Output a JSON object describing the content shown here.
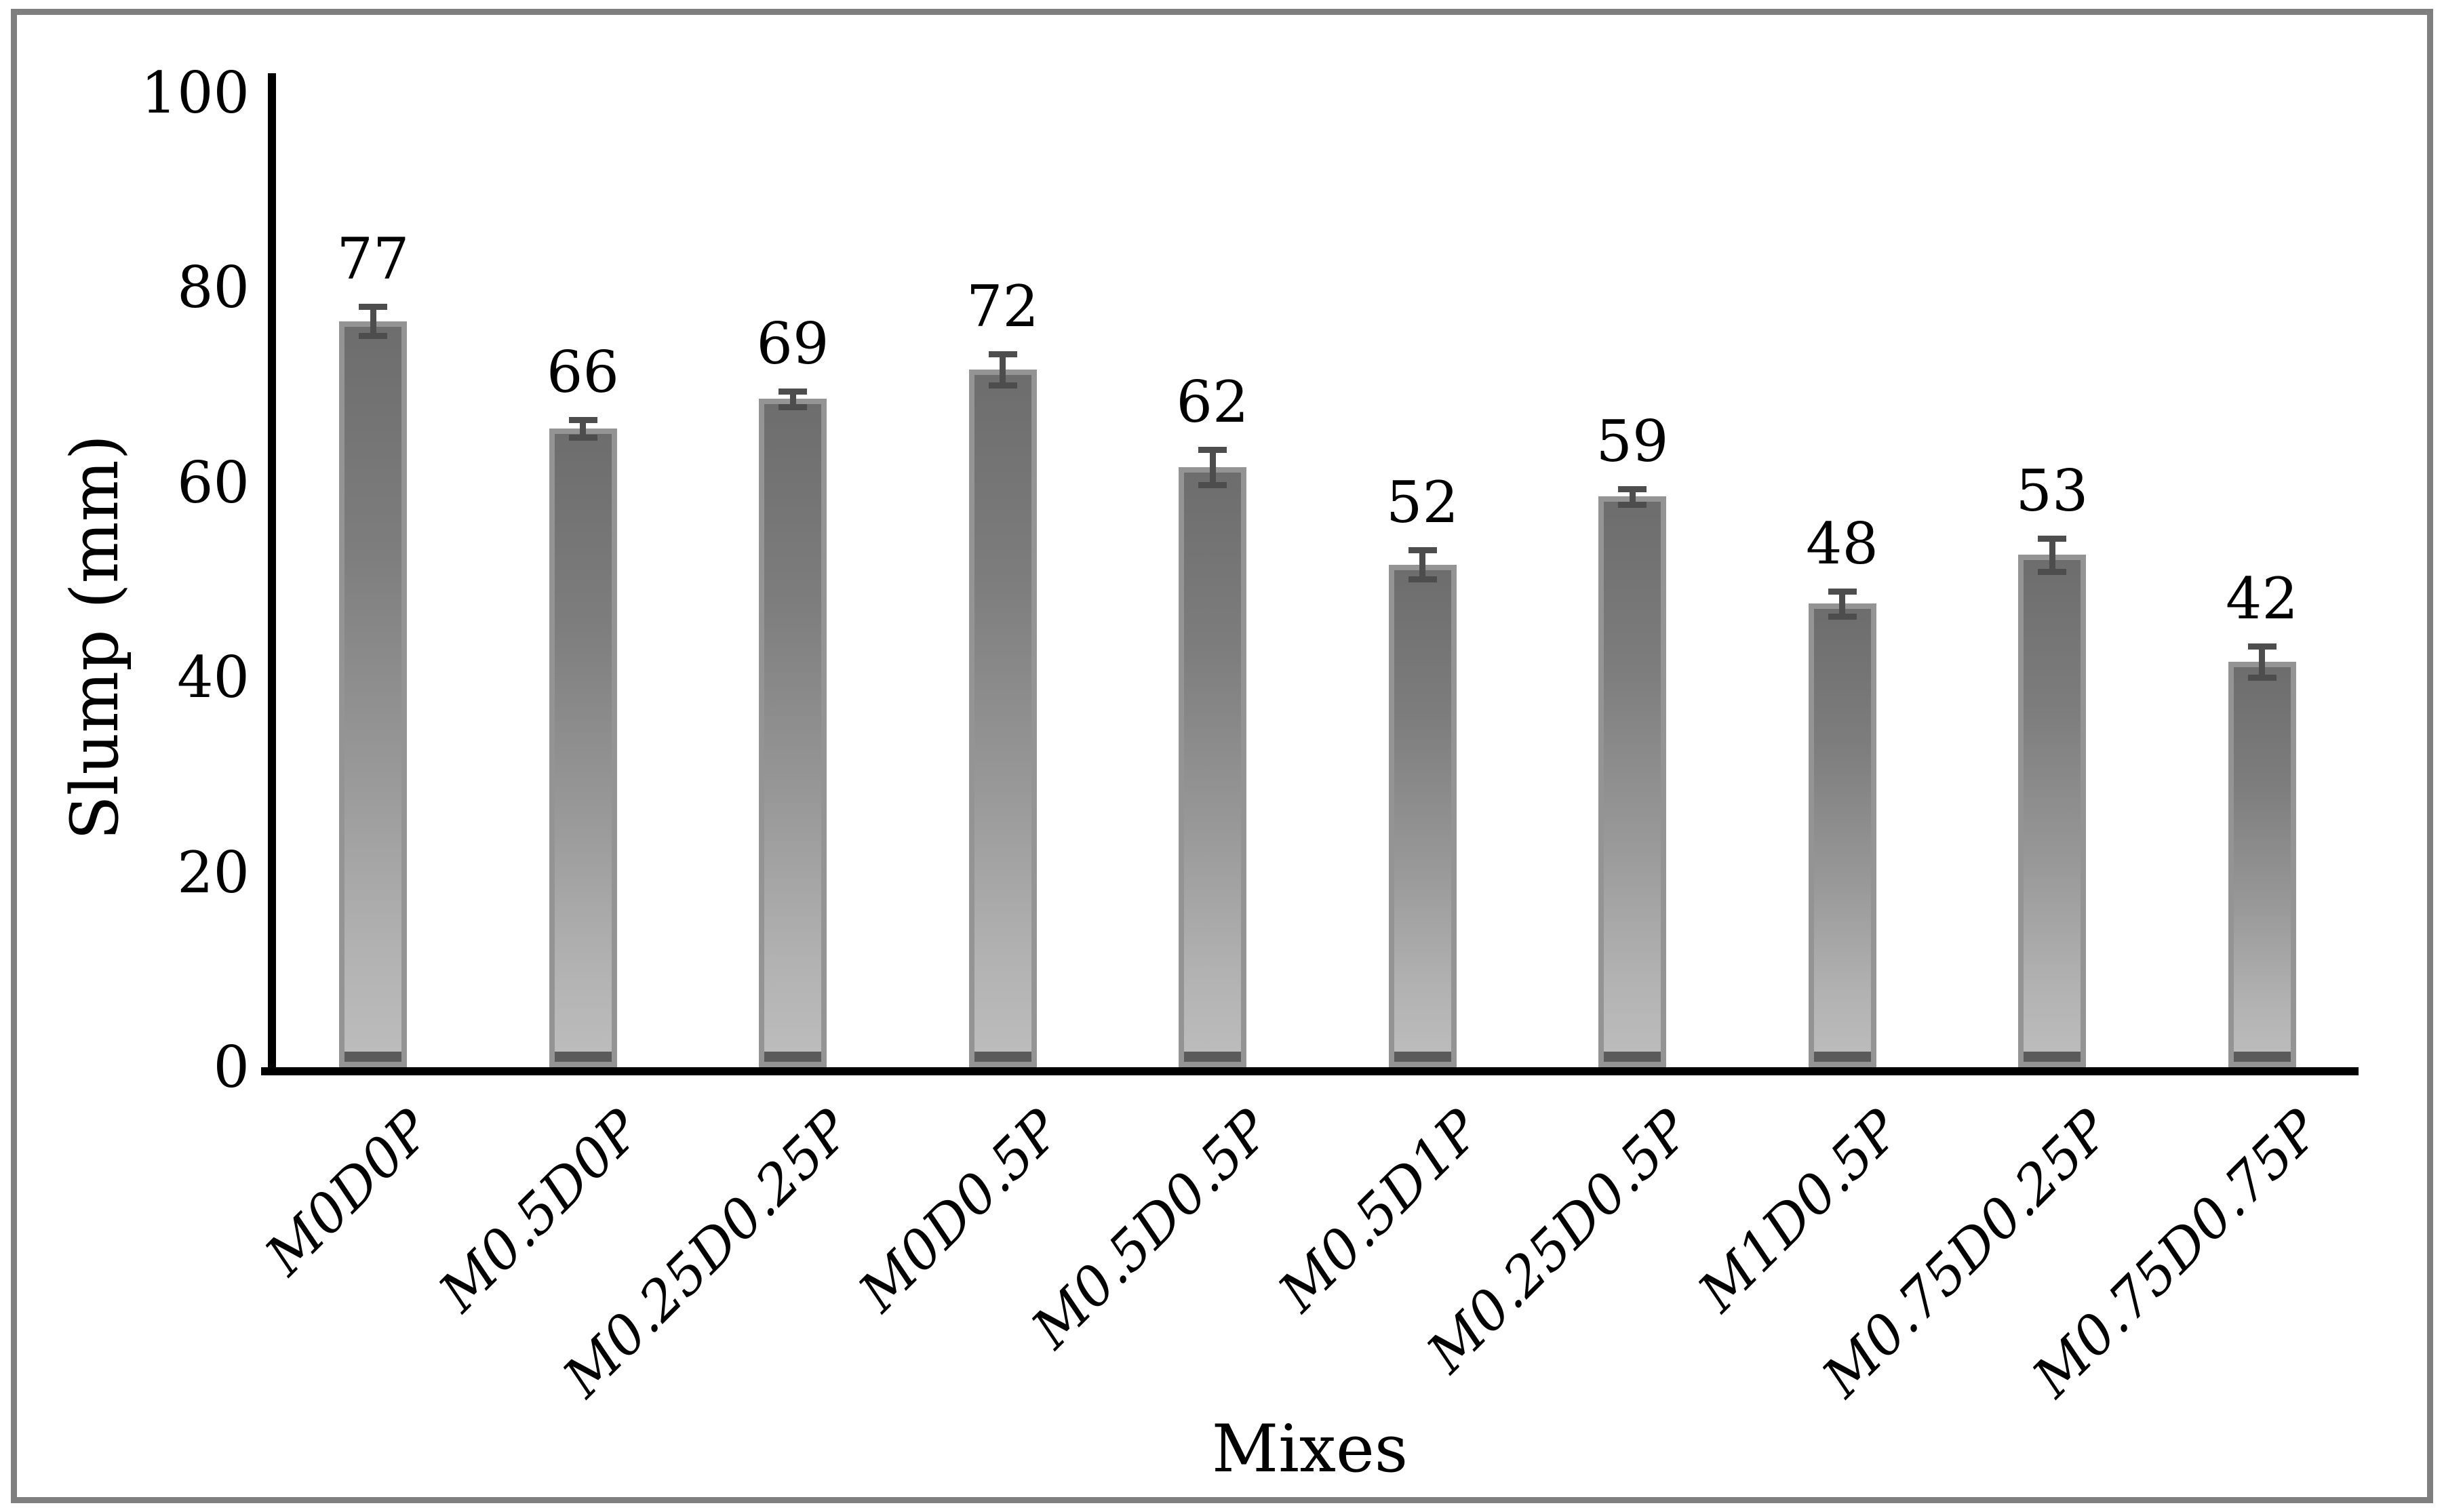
{
  "figure": {
    "background": "#ffffff",
    "frame_color": "#7f7f7f"
  },
  "chart_data": {
    "type": "bar",
    "title": "",
    "xlabel": "Mixes",
    "ylabel": "Slump (mm)",
    "categories": [
      "M0D0P",
      "M0.5D0P",
      "M0.25D0.25P",
      "M0D0.5P",
      "M0.5D0.5P",
      "M0.5D1P",
      "M0.25D0.5P",
      "M1D0.5P",
      "M0.75D0.25P",
      "M0.75D0.75P"
    ],
    "values": [
      77,
      66,
      69,
      72,
      62,
      52,
      59,
      48,
      53,
      42
    ],
    "data_labels": [
      "77",
      "66",
      "69",
      "72",
      "62",
      "52",
      "59",
      "48",
      "53",
      "42"
    ],
    "error_bars": [
      1.5,
      0.9,
      0.8,
      1.6,
      1.8,
      1.5,
      0.8,
      1.3,
      1.7,
      1.6
    ],
    "yticks": [
      "0",
      "20",
      "40",
      "60",
      "80",
      "100"
    ],
    "ylim": [
      0,
      100
    ],
    "grid": "off",
    "legend": "none",
    "bar_style": {
      "fill_top": "#6d6d6d",
      "fill_bottom": "#bdbdbd",
      "border": "#949494",
      "foot": "#5a5a5a",
      "error_color": "#4d4d4d"
    }
  }
}
